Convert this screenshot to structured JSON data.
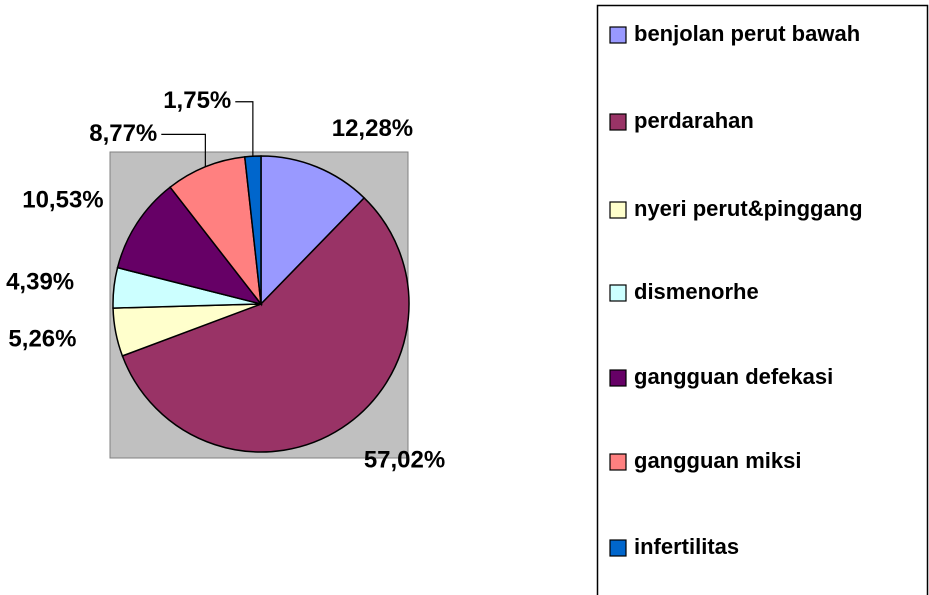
{
  "chart_data": {
    "type": "pie",
    "categories": [
      "benjolan perut bawah",
      "perdarahan",
      "nyeri perut&pinggang",
      "dismenorhe",
      "gangguan defekasi",
      "gangguan miksi",
      "infertilitas"
    ],
    "values": [
      12.28,
      57.02,
      5.26,
      4.39,
      10.53,
      8.77,
      1.75
    ],
    "value_labels": [
      "12,28%",
      "57,02%",
      "5,26%",
      "4,39%",
      "10,53%",
      "8,77%",
      "1,75%"
    ],
    "colors": [
      "#9999ff",
      "#993366",
      "#ffffcc",
      "#ccffff",
      "#660066",
      "#ff8080",
      "#0066cc"
    ]
  }
}
